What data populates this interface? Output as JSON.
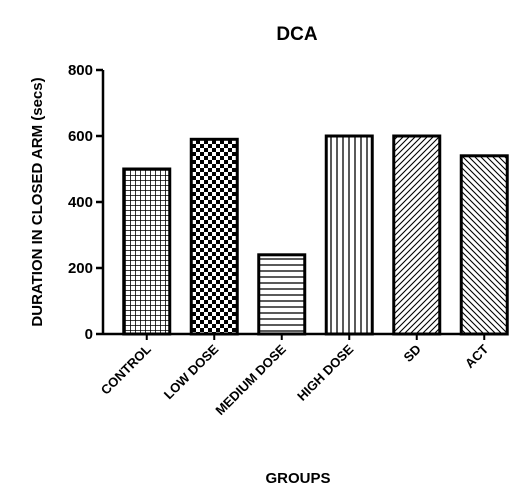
{
  "chart_data": {
    "type": "bar",
    "title": "DCA",
    "xlabel": "GROUPS",
    "ylabel": "DURATION IN CLOSED ARM (secs)",
    "ylim": [
      0,
      800
    ],
    "yticks": [
      0,
      200,
      400,
      600,
      800
    ],
    "grid": false,
    "categories": [
      "CONTROL",
      "LOW DOSE",
      "MEDIUM DOSE",
      "HIGH DOSE",
      "SD",
      "ACT"
    ],
    "values": [
      500,
      590,
      240,
      600,
      600,
      540
    ],
    "patterns": [
      "fine-crosshatch",
      "checkerboard",
      "horizontal-lines",
      "vertical-lines",
      "diagonal-forward",
      "diagonal-backward"
    ],
    "colors": {
      "ink": "#000000",
      "background": "#ffffff"
    }
  }
}
